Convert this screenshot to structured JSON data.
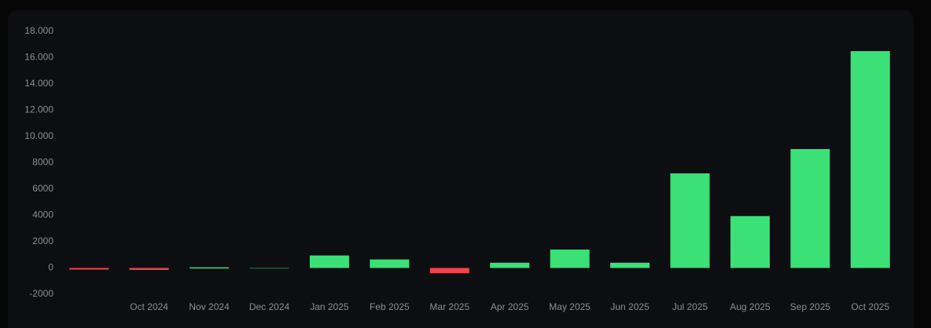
{
  "chart_data": {
    "type": "bar",
    "categories": [
      null,
      "Oct 2024",
      "Nov 2024",
      "Dec 2024",
      "Jan 2025",
      "Feb 2025",
      "Mar 2025",
      "Apr 2025",
      "May 2025",
      "Jun 2025",
      "Jul 2025",
      "Aug 2025",
      "Sep 2025",
      "Oct 2025"
    ],
    "values": [
      -120,
      -150,
      50,
      30,
      950,
      650,
      -400,
      400,
      1400,
      400,
      7200,
      3950,
      9050,
      16500
    ],
    "colors": [
      "#f0444d",
      "#f0444d",
      "#3be076",
      "#1e5a3a",
      "#3be076",
      "#3be076",
      "#f0444d",
      "#3be076",
      "#3be076",
      "#3be076",
      "#3be076",
      "#3be076",
      "#3be076",
      "#3be076"
    ],
    "ylim": [
      -2000,
      18000
    ],
    "yticks": [
      -2000,
      0,
      2000,
      4000,
      6000,
      8000,
      {
        "value": 10000,
        "label": "10.000"
      },
      {
        "value": 12000,
        "label": "12.000"
      },
      {
        "value": 14000,
        "label": "14.000"
      },
      {
        "value": 16000,
        "label": "16.000"
      },
      {
        "value": 18000,
        "label": "18.000"
      }
    ]
  }
}
